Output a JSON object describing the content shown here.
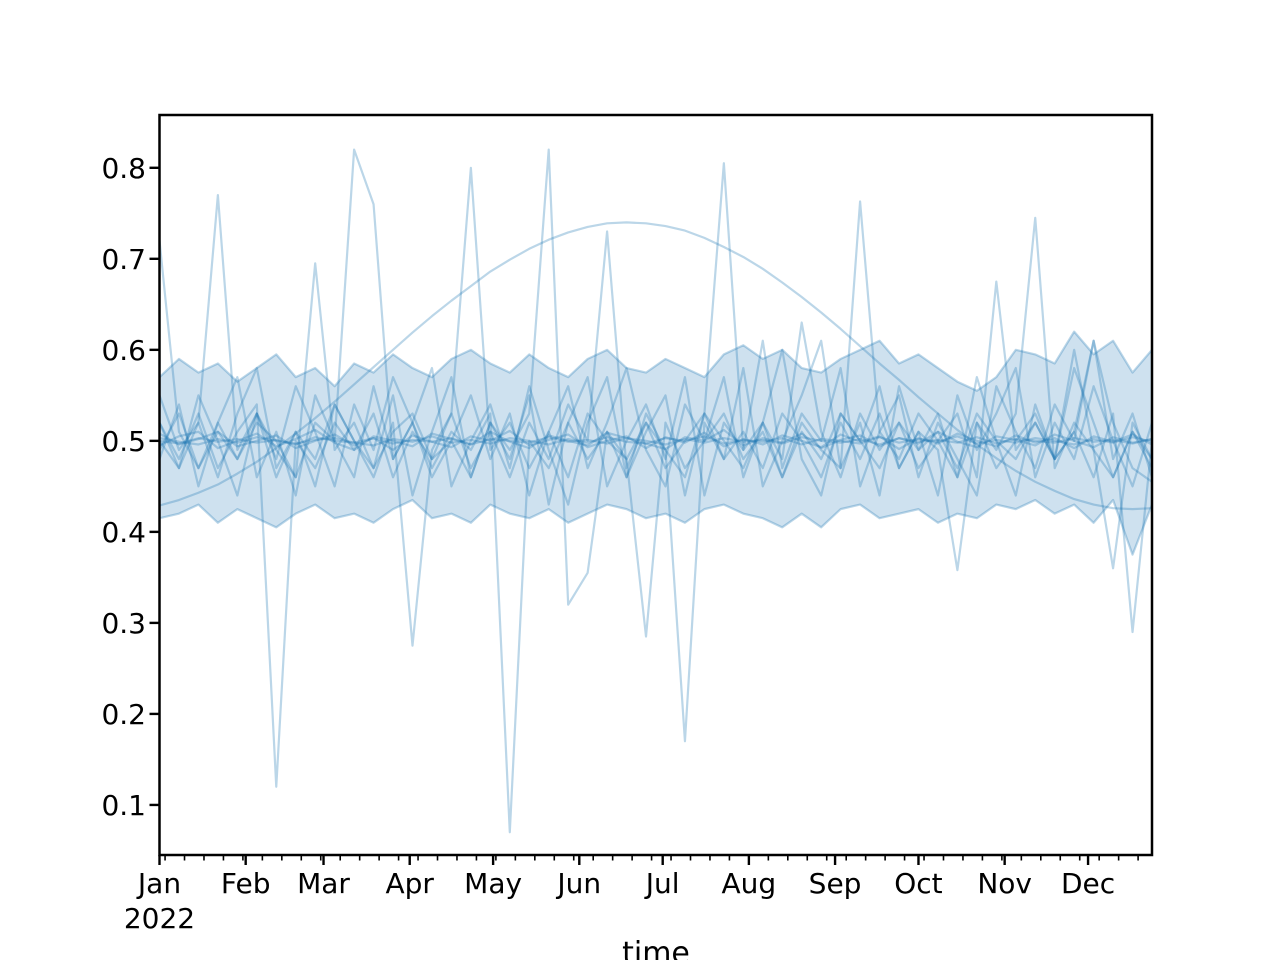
{
  "page": {
    "background": "#ffffff"
  },
  "axes": {
    "frame_color": "#000000",
    "tick_color": "#000000",
    "text_color": "#000000"
  },
  "chart_data": {
    "type": "line",
    "title": "",
    "xlabel": "time",
    "ylabel": "",
    "legend": "none",
    "grid": false,
    "xlim_days": [
      0,
      357
    ],
    "ylim": [
      0.045,
      0.858
    ],
    "y_ticks": [
      0.1,
      0.2,
      0.3,
      0.4,
      0.5,
      0.6,
      0.7,
      0.8
    ],
    "x_axis": {
      "year_label": "2022",
      "months": [
        {
          "label": "Jan",
          "day": 0
        },
        {
          "label": "Feb",
          "day": 31
        },
        {
          "label": "Mar",
          "day": 59
        },
        {
          "label": "Apr",
          "day": 90
        },
        {
          "label": "May",
          "day": 120
        },
        {
          "label": "Jun",
          "day": 151
        },
        {
          "label": "Jul",
          "day": 181
        },
        {
          "label": "Aug",
          "day": 212
        },
        {
          "label": "Sep",
          "day": 243
        },
        {
          "label": "Oct",
          "day": 273
        },
        {
          "label": "Nov",
          "day": 304
        },
        {
          "label": "Dec",
          "day": 334
        }
      ],
      "minor_tick_every_days": 7,
      "minor_tick_start_day": 2
    },
    "sample_interval_days": 7,
    "colors": {
      "line": "#1f77b4",
      "line_alpha": 0.3,
      "band_fill": "#1f77b4",
      "band_alpha": 0.22
    },
    "band": {
      "upper": [
        0.57,
        0.59,
        0.575,
        0.585,
        0.565,
        0.58,
        0.595,
        0.57,
        0.58,
        0.56,
        0.585,
        0.575,
        0.595,
        0.58,
        0.57,
        0.59,
        0.6,
        0.585,
        0.575,
        0.595,
        0.58,
        0.57,
        0.59,
        0.6,
        0.58,
        0.575,
        0.59,
        0.58,
        0.57,
        0.595,
        0.605,
        0.59,
        0.6,
        0.58,
        0.575,
        0.59,
        0.6,
        0.61,
        0.585,
        0.595,
        0.58,
        0.565,
        0.555,
        0.57,
        0.6,
        0.595,
        0.585,
        0.62,
        0.595,
        0.61,
        0.575,
        0.6
      ],
      "lower": [
        0.415,
        0.42,
        0.43,
        0.41,
        0.425,
        0.415,
        0.405,
        0.42,
        0.43,
        0.415,
        0.42,
        0.41,
        0.425,
        0.435,
        0.415,
        0.42,
        0.41,
        0.43,
        0.42,
        0.415,
        0.425,
        0.41,
        0.42,
        0.43,
        0.425,
        0.415,
        0.42,
        0.41,
        0.425,
        0.43,
        0.42,
        0.415,
        0.405,
        0.42,
        0.405,
        0.425,
        0.43,
        0.415,
        0.42,
        0.425,
        0.41,
        0.42,
        0.415,
        0.43,
        0.425,
        0.435,
        0.42,
        0.43,
        0.41,
        0.435,
        0.375,
        0.43
      ]
    },
    "series": [
      {
        "values": [
          0.429,
          0.435,
          0.443,
          0.452,
          0.464,
          0.477,
          0.492,
          0.508,
          0.525,
          0.543,
          0.562,
          0.581,
          0.6,
          0.619,
          0.637,
          0.654,
          0.67,
          0.686,
          0.699,
          0.711,
          0.721,
          0.729,
          0.735,
          0.739,
          0.74,
          0.739,
          0.736,
          0.731,
          0.723,
          0.713,
          0.702,
          0.689,
          0.674,
          0.658,
          0.641,
          0.623,
          0.604,
          0.585,
          0.567,
          0.548,
          0.53,
          0.512,
          0.496,
          0.481,
          0.467,
          0.455,
          0.445,
          0.436,
          0.43,
          0.426,
          0.425,
          0.426
        ]
      },
      {
        "values": [
          0.5,
          0.497,
          0.503,
          0.499,
          0.502,
          0.498,
          0.501,
          0.496,
          0.504,
          0.5,
          0.498,
          0.503,
          0.497,
          0.501,
          0.499,
          0.503,
          0.496,
          0.502,
          0.5,
          0.498,
          0.504,
          0.499,
          0.501,
          0.497,
          0.503,
          0.5,
          0.496,
          0.502,
          0.498,
          0.503,
          0.499,
          0.501,
          0.497,
          0.504,
          0.5,
          0.498,
          0.502,
          0.496,
          0.503,
          0.499,
          0.501,
          0.498,
          0.504,
          0.497,
          0.502,
          0.5,
          0.498,
          0.503,
          0.499,
          0.501,
          0.497,
          0.502
        ]
      },
      {
        "values": [
          0.503,
          0.499,
          0.496,
          0.502,
          0.498,
          0.504,
          0.5,
          0.497,
          0.501,
          0.503,
          0.498,
          0.495,
          0.502,
          0.499,
          0.505,
          0.498,
          0.501,
          0.497,
          0.503,
          0.5,
          0.496,
          0.502,
          0.498,
          0.504,
          0.499,
          0.497,
          0.503,
          0.5,
          0.505,
          0.497,
          0.501,
          0.499,
          0.503,
          0.496,
          0.502,
          0.5,
          0.497,
          0.504,
          0.498,
          0.502,
          0.499,
          0.505,
          0.497,
          0.501,
          0.498,
          0.503,
          0.5,
          0.496,
          0.502,
          0.498,
          0.504,
          0.499
        ]
      },
      {
        "values": [
          0.495,
          0.505,
          0.51,
          0.492,
          0.5,
          0.508,
          0.494,
          0.502,
          0.512,
          0.498,
          0.49,
          0.505,
          0.5,
          0.494,
          0.508,
          0.502,
          0.496,
          0.51,
          0.499,
          0.492,
          0.506,
          0.5,
          0.495,
          0.509,
          0.503,
          0.497,
          0.491,
          0.504,
          0.5,
          0.512,
          0.495,
          0.503,
          0.498,
          0.508,
          0.492,
          0.501,
          0.506,
          0.494,
          0.503,
          0.497,
          0.51,
          0.499,
          0.493,
          0.505,
          0.501,
          0.495,
          0.507,
          0.5,
          0.493,
          0.504,
          0.498,
          0.502
        ]
      },
      {
        "values": [
          0.508,
          0.496,
          0.502,
          0.51,
          0.494,
          0.5,
          0.506,
          0.492,
          0.5,
          0.507,
          0.495,
          0.503,
          0.49,
          0.506,
          0.499,
          0.493,
          0.505,
          0.5,
          0.511,
          0.495,
          0.501,
          0.507,
          0.493,
          0.5,
          0.505,
          0.492,
          0.504,
          0.498,
          0.509,
          0.494,
          0.502,
          0.496,
          0.506,
          0.5,
          0.493,
          0.507,
          0.499,
          0.505,
          0.491,
          0.503,
          0.497,
          0.508,
          0.5,
          0.494,
          0.506,
          0.498,
          0.503,
          0.492,
          0.505,
          0.499,
          0.507,
          0.496
        ]
      },
      {
        "values": [
          0.52,
          0.47,
          0.55,
          0.5,
          0.44,
          0.53,
          0.48,
          0.56,
          0.51,
          0.45,
          0.54,
          0.49,
          0.57,
          0.52,
          0.46,
          0.5,
          0.55,
          0.48,
          0.53,
          0.44,
          0.51,
          0.56,
          0.47,
          0.52,
          0.58,
          0.49,
          0.45,
          0.54,
          0.5,
          0.57,
          0.46,
          0.52,
          0.6,
          0.48,
          0.44,
          0.53,
          0.5,
          0.56,
          0.47,
          0.51,
          0.44,
          0.55,
          0.49,
          0.53,
          0.58,
          0.46,
          0.52,
          0.48,
          0.56,
          0.5,
          0.45,
          0.52
        ]
      },
      {
        "values": [
          0.48,
          0.54,
          0.45,
          0.52,
          0.57,
          0.46,
          0.51,
          0.44,
          0.55,
          0.5,
          0.46,
          0.56,
          0.48,
          0.52,
          0.58,
          0.45,
          0.5,
          0.54,
          0.47,
          0.56,
          0.49,
          0.43,
          0.52,
          0.57,
          0.46,
          0.51,
          0.55,
          0.44,
          0.53,
          0.48,
          0.58,
          0.45,
          0.5,
          0.55,
          0.61,
          0.47,
          0.52,
          0.44,
          0.56,
          0.49,
          0.53,
          0.46,
          0.57,
          0.5,
          0.44,
          0.54,
          0.48,
          0.58,
          0.52,
          0.46,
          0.51,
          0.47
        ]
      },
      {
        "values": [
          0.55,
          0.49,
          0.52,
          0.46,
          0.53,
          0.58,
          0.47,
          0.51,
          0.45,
          0.54,
          0.5,
          0.47,
          0.55,
          0.44,
          0.51,
          0.57,
          0.46,
          0.52,
          0.48,
          0.55,
          0.43,
          0.52,
          0.57,
          0.45,
          0.5,
          0.54,
          0.48,
          0.57,
          0.44,
          0.52,
          0.49,
          0.61,
          0.47,
          0.53,
          0.5,
          0.58,
          0.45,
          0.51,
          0.55,
          0.46,
          0.52,
          0.48,
          0.44,
          0.56,
          0.51,
          0.47,
          0.54,
          0.5,
          0.61,
          0.48,
          0.53,
          0.46
        ]
      },
      {
        "values": [
          0.5,
          0.47,
          0.52,
          0.77,
          0.49,
          0.53,
          0.46,
          0.51,
          0.48,
          0.54,
          0.5,
          0.46,
          0.52,
          0.275,
          0.49,
          0.53,
          0.47,
          0.51,
          0.46,
          0.52,
          0.48,
          0.54,
          0.5,
          0.73,
          0.47,
          0.52,
          0.49,
          0.46,
          0.53,
          0.5,
          0.47,
          0.52,
          0.48,
          0.63,
          0.51,
          0.46,
          0.53,
          0.49,
          0.52,
          0.47,
          0.5,
          0.53,
          0.46,
          0.675,
          0.49,
          0.52,
          0.48,
          0.51,
          0.46,
          0.53,
          0.29,
          0.5
        ]
      },
      {
        "values": [
          0.52,
          0.48,
          0.53,
          0.47,
          0.51,
          0.54,
          0.12,
          0.5,
          0.47,
          0.52,
          0.49,
          0.53,
          0.46,
          0.51,
          0.48,
          0.53,
          0.8,
          0.49,
          0.52,
          0.47,
          0.51,
          0.46,
          0.53,
          0.5,
          0.48,
          0.285,
          0.52,
          0.47,
          0.5,
          0.53,
          0.48,
          0.51,
          0.46,
          0.52,
          0.49,
          0.47,
          0.763,
          0.51,
          0.48,
          0.53,
          0.5,
          0.46,
          0.52,
          0.49,
          0.53,
          0.745,
          0.47,
          0.52,
          0.49,
          0.46,
          0.51,
          0.48
        ]
      },
      {
        "values": [
          0.72,
          0.51,
          0.47,
          0.52,
          0.48,
          0.53,
          0.49,
          0.46,
          0.52,
          0.5,
          0.82,
          0.76,
          0.48,
          0.52,
          0.47,
          0.51,
          0.49,
          0.53,
          0.07,
          0.5,
          0.47,
          0.52,
          0.48,
          0.51,
          0.46,
          0.53,
          0.49,
          0.17,
          0.52,
          0.48,
          0.51,
          0.47,
          0.53,
          0.5,
          0.46,
          0.52,
          0.48,
          0.53,
          0.47,
          0.51,
          0.49,
          0.358,
          0.52,
          0.47,
          0.5,
          0.53,
          0.48,
          0.51,
          0.61,
          0.52,
          0.47,
          0.455
        ]
      },
      {
        "values": [
          0.49,
          0.53,
          0.47,
          0.51,
          0.48,
          0.52,
          0.5,
          0.46,
          0.695,
          0.49,
          0.52,
          0.47,
          0.51,
          0.53,
          0.48,
          0.5,
          0.46,
          0.52,
          0.49,
          0.53,
          0.82,
          0.32,
          0.355,
          0.51,
          0.48,
          0.52,
          0.47,
          0.5,
          0.53,
          0.805,
          0.49,
          0.52,
          0.46,
          0.51,
          0.48,
          0.53,
          0.5,
          0.47,
          0.52,
          0.49,
          0.51,
          0.47,
          0.53,
          0.5,
          0.48,
          0.52,
          0.48,
          0.6,
          0.49,
          0.36,
          0.52,
          0.48
        ]
      }
    ]
  }
}
